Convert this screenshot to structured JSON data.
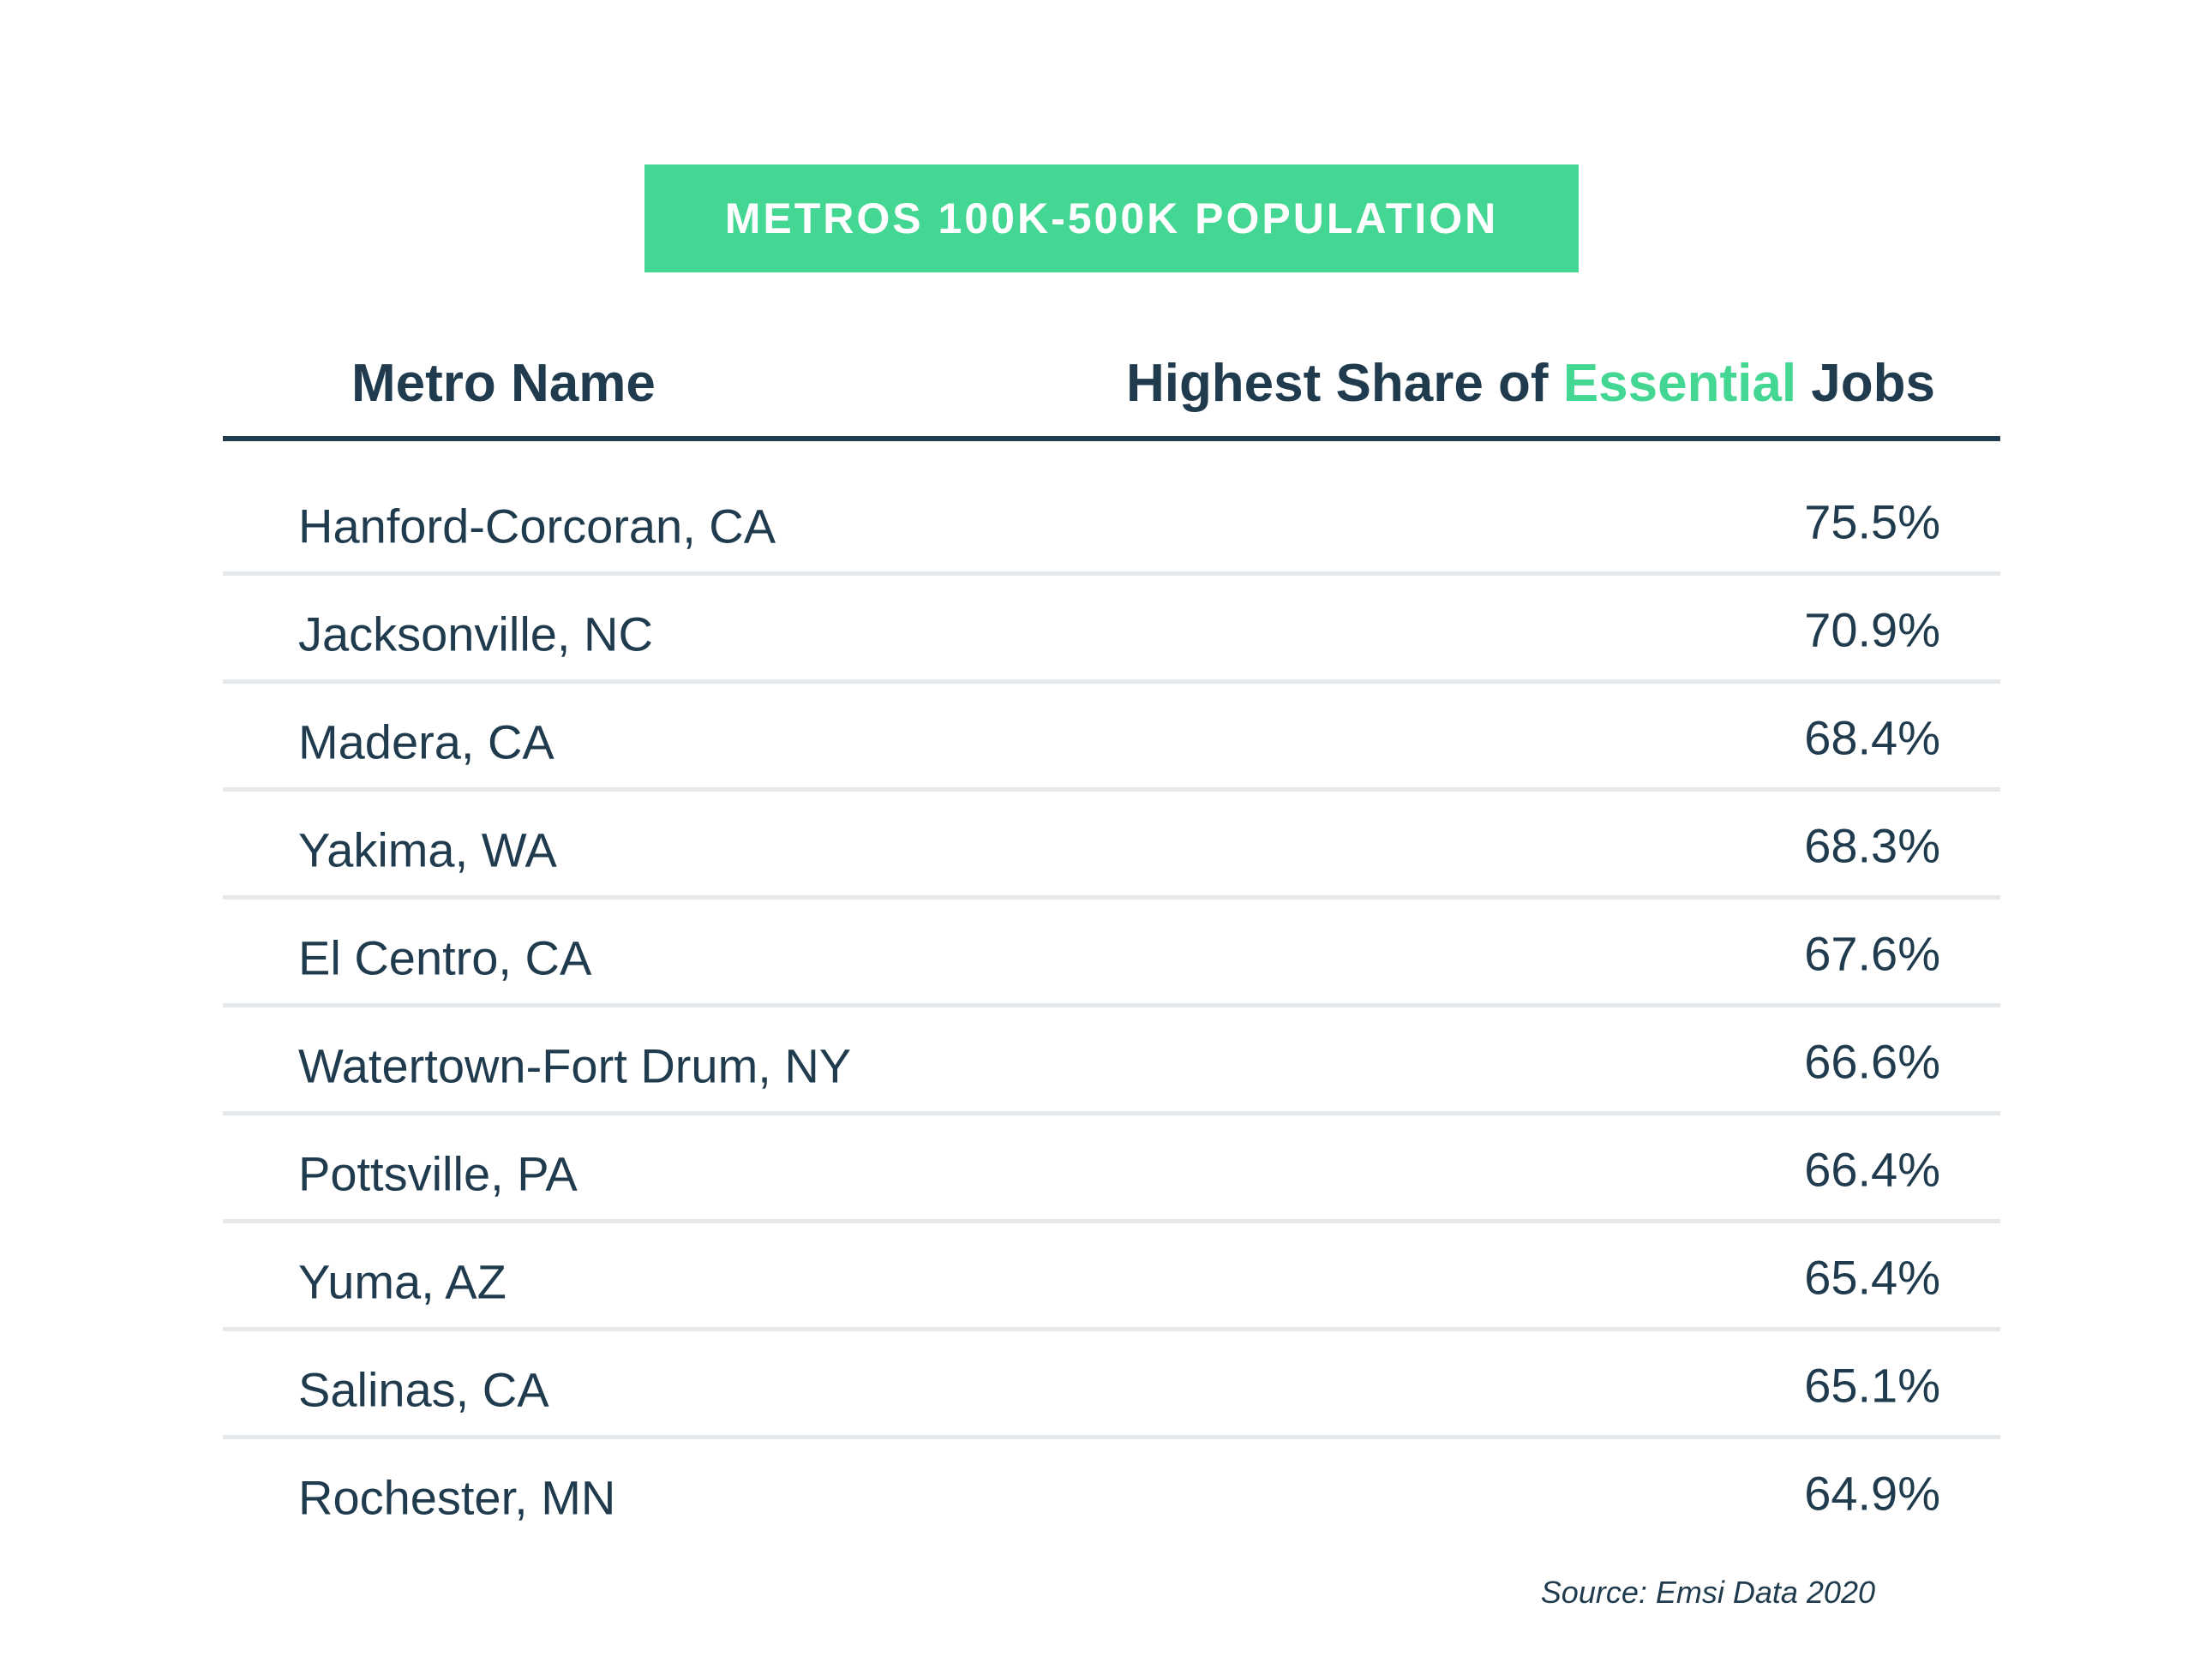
{
  "banner": {
    "title": "METROS 100K-500K POPULATION",
    "color": "#44d793"
  },
  "header": {
    "metro_label": "Metro Name",
    "share_label_pre": "Highest Share of ",
    "share_label_accent": "Essential",
    "share_label_post": " Jobs"
  },
  "colors": {
    "text": "#1f3b4d",
    "accent": "#44d793",
    "row_divider": "#e6e9ec"
  },
  "chart_data": {
    "type": "table",
    "title": "METROS 100K-500K POPULATION",
    "columns": [
      "Metro Name",
      "Highest Share of Essential Jobs"
    ],
    "rows": [
      {
        "metro": "Hanford-Corcoran, CA",
        "share": "75.5%"
      },
      {
        "metro": "Jacksonville, NC",
        "share": "70.9%"
      },
      {
        "metro": "Madera, CA",
        "share": "68.4%"
      },
      {
        "metro": "Yakima, WA",
        "share": "68.3%"
      },
      {
        "metro": "El Centro, CA",
        "share": "67.6%"
      },
      {
        "metro": "Watertown-Fort Drum, NY",
        "share": "66.6%"
      },
      {
        "metro": "Pottsville, PA",
        "share": "66.4%"
      },
      {
        "metro": "Yuma, AZ",
        "share": "65.4%"
      },
      {
        "metro": "Salinas, CA",
        "share": "65.1%"
      },
      {
        "metro": "Rochester, MN",
        "share": "64.9%"
      }
    ]
  },
  "footer": {
    "source": "Source: Emsi Data 2020"
  }
}
